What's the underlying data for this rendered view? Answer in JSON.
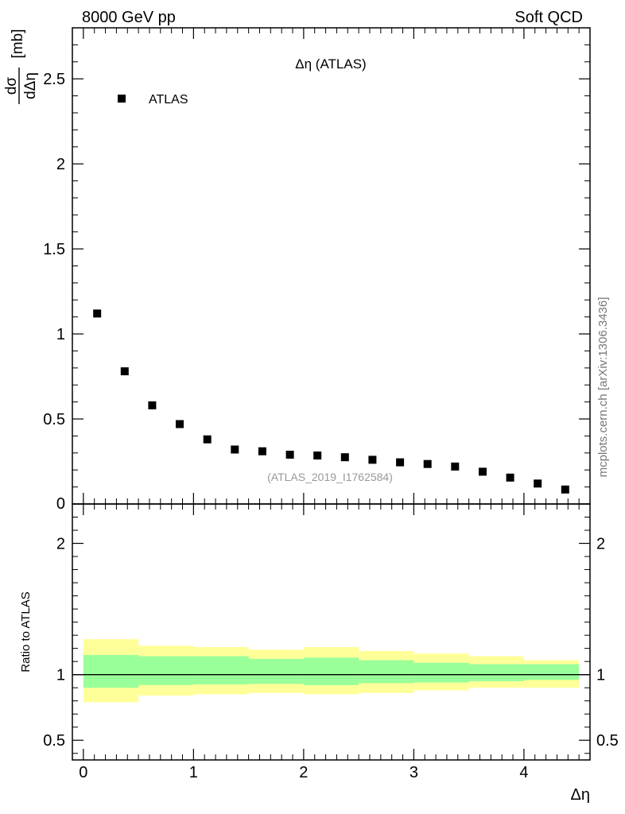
{
  "header": {
    "left": "8000 GeV pp",
    "right": "Soft QCD"
  },
  "side_label": "mcplots.cern.ch [arXiv:1306.3436]",
  "chart_data": [
    {
      "type": "scatter",
      "panel": "main",
      "title": "Δη (ATLAS)",
      "analysis_label": "(ATLAS_2019_I1762584)",
      "ylabel": "[mb]",
      "ylabel_fraction": {
        "numerator": "dσ",
        "denominator": "dΔη"
      },
      "legend": {
        "entries": [
          "ATLAS"
        ],
        "placement": "top-left"
      },
      "x": [
        0.125,
        0.375,
        0.625,
        0.875,
        1.125,
        1.375,
        1.625,
        1.875,
        2.125,
        2.375,
        2.625,
        2.875,
        3.125,
        3.375,
        3.625,
        3.875,
        4.125,
        4.375
      ],
      "series": [
        {
          "name": "ATLAS",
          "values": [
            1.12,
            0.78,
            0.58,
            0.47,
            0.38,
            0.32,
            0.31,
            0.29,
            0.285,
            0.275,
            0.26,
            0.245,
            0.235,
            0.22,
            0.19,
            0.155,
            0.12,
            0.085
          ]
        }
      ],
      "xlim": [
        -0.1,
        4.6
      ],
      "ylim": [
        0,
        2.8
      ],
      "yticks": [
        0,
        0.5,
        1,
        1.5,
        2,
        2.5
      ],
      "ytick_labels": [
        "0",
        "0.5",
        "1",
        "1.5",
        "2",
        "2.5"
      ],
      "grid": false
    },
    {
      "type": "area",
      "panel": "ratio",
      "ylabel": "Ratio to ATLAS",
      "xlabel": "Δη",
      "bin_edges": [
        0,
        0.5,
        1,
        1.5,
        2,
        2.5,
        3,
        3.5,
        4,
        4.5
      ],
      "series": [
        {
          "band": "yellow-outer",
          "color": "#ffff99",
          "low": [
            0.79,
            0.84,
            0.85,
            0.86,
            0.85,
            0.86,
            0.88,
            0.9,
            0.9
          ],
          "high": [
            1.27,
            1.22,
            1.21,
            1.19,
            1.21,
            1.18,
            1.16,
            1.14,
            1.11
          ]
        },
        {
          "band": "green-inner",
          "color": "#99ff99",
          "low": [
            0.9,
            0.92,
            0.925,
            0.93,
            0.92,
            0.935,
            0.94,
            0.95,
            0.96
          ],
          "high": [
            1.15,
            1.14,
            1.14,
            1.12,
            1.13,
            1.11,
            1.09,
            1.08,
            1.08
          ]
        }
      ],
      "reference_line": 1,
      "xlim": [
        -0.1,
        4.6
      ],
      "ylim": [
        0.35,
        2.3
      ],
      "yticks": [
        0.5,
        1,
        2
      ],
      "ytick_labels": [
        "0.5",
        "1",
        "2"
      ],
      "xticks": [
        0,
        1,
        2,
        3,
        4
      ],
      "xtick_labels": [
        "0",
        "1",
        "2",
        "3",
        "4"
      ],
      "grid": false
    }
  ]
}
